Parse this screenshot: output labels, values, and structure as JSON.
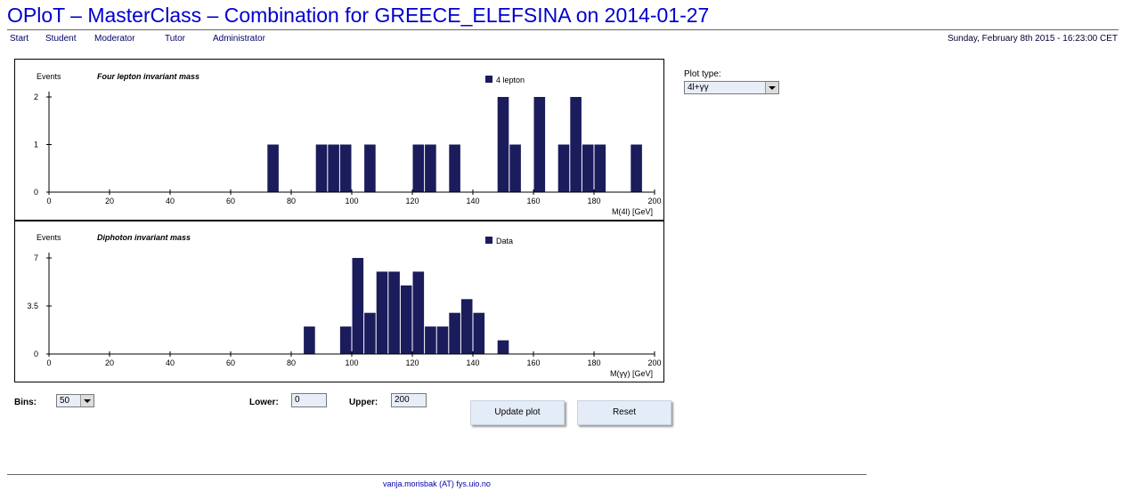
{
  "header": {
    "title": "OPloT – MasterClass – Combination for GREECE_ELEFSINA on 2014-01-27",
    "datetime": "Sunday, February 8th 2015 - 16:23:00 CET"
  },
  "nav": {
    "items": [
      "Start",
      "Student",
      "Moderator",
      "Tutor",
      "Administrator"
    ]
  },
  "controls": {
    "plot_type_label": "Plot type:",
    "plot_type_value": "4l+γγ",
    "bins_label": "Bins:",
    "bins_value": "50",
    "lower_label": "Lower:",
    "lower_value": "0",
    "upper_label": "Upper:",
    "upper_value": "200",
    "update_label": "Update plot",
    "reset_label": "Reset"
  },
  "footer": {
    "contact": "vanja.morisbak (AT) fys.uio.no"
  },
  "colors": {
    "bar": "#1b1c5c",
    "title": "#0000cc"
  },
  "chart_data": [
    {
      "type": "bar",
      "title": "Four lepton invariant mass",
      "ylabel": "Events",
      "xlabel": "M(4l) [GeV]",
      "legend": "4 lepton",
      "legend_position": "top-right",
      "bin_width": 4,
      "xlim": [
        0,
        200
      ],
      "ylim": [
        0,
        2
      ],
      "xticks": [
        "0",
        "20",
        "40",
        "60",
        "80",
        "100",
        "120",
        "140",
        "160",
        "180",
        "200"
      ],
      "yticks": [
        "0",
        "1",
        "2"
      ],
      "bins": [
        {
          "x": 72,
          "value": 1
        },
        {
          "x": 88,
          "value": 1
        },
        {
          "x": 92,
          "value": 1
        },
        {
          "x": 96,
          "value": 1
        },
        {
          "x": 104,
          "value": 1
        },
        {
          "x": 120,
          "value": 1
        },
        {
          "x": 124,
          "value": 1
        },
        {
          "x": 132,
          "value": 1
        },
        {
          "x": 148,
          "value": 2
        },
        {
          "x": 152,
          "value": 1
        },
        {
          "x": 160,
          "value": 2
        },
        {
          "x": 168,
          "value": 1
        },
        {
          "x": 172,
          "value": 2
        },
        {
          "x": 176,
          "value": 1
        },
        {
          "x": 180,
          "value": 1
        },
        {
          "x": 192,
          "value": 1
        }
      ]
    },
    {
      "type": "bar",
      "title": "Diphoton invariant mass",
      "ylabel": "Events",
      "xlabel": "M(γγ) [GeV]",
      "legend": "Data",
      "legend_position": "top-right",
      "bin_width": 4,
      "xlim": [
        0,
        200
      ],
      "ylim": [
        0,
        7
      ],
      "xticks": [
        "0",
        "20",
        "40",
        "60",
        "80",
        "100",
        "120",
        "140",
        "160",
        "180",
        "200"
      ],
      "yticks": [
        "0",
        "3.5",
        "7"
      ],
      "bins": [
        {
          "x": 84,
          "value": 2
        },
        {
          "x": 96,
          "value": 2
        },
        {
          "x": 100,
          "value": 7
        },
        {
          "x": 104,
          "value": 3
        },
        {
          "x": 108,
          "value": 6
        },
        {
          "x": 112,
          "value": 6
        },
        {
          "x": 116,
          "value": 5
        },
        {
          "x": 120,
          "value": 6
        },
        {
          "x": 124,
          "value": 2
        },
        {
          "x": 128,
          "value": 2
        },
        {
          "x": 132,
          "value": 3
        },
        {
          "x": 136,
          "value": 4
        },
        {
          "x": 140,
          "value": 3
        },
        {
          "x": 148,
          "value": 1
        }
      ]
    }
  ]
}
